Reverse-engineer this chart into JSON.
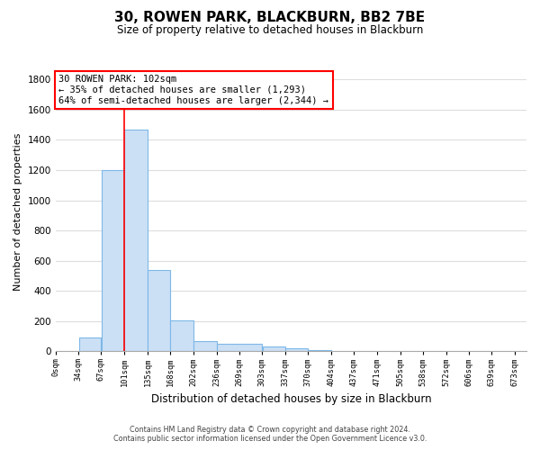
{
  "title": "30, ROWEN PARK, BLACKBURN, BB2 7BE",
  "subtitle": "Size of property relative to detached houses in Blackburn",
  "xlabel": "Distribution of detached houses by size in Blackburn",
  "ylabel": "Number of detached properties",
  "bar_values": [
    90,
    1200,
    1470,
    540,
    205,
    65,
    47,
    30,
    18,
    10
  ],
  "bar_left_edges": [
    34,
    67,
    101,
    135,
    168,
    202,
    236,
    303,
    337,
    370
  ],
  "bar_widths": [
    33,
    34,
    34,
    33,
    34,
    34,
    67,
    34,
    33,
    34
  ],
  "bar_color": "#cce0f5",
  "bar_edgecolor": "#7db8e8",
  "x_tick_positions": [
    0,
    34,
    67,
    101,
    135,
    168,
    202,
    236,
    269,
    303,
    337,
    370,
    404,
    437,
    471,
    505,
    538,
    572,
    606,
    639,
    673
  ],
  "x_tick_labels": [
    "0sqm",
    "34sqm",
    "67sqm",
    "101sqm",
    "135sqm",
    "168sqm",
    "202sqm",
    "236sqm",
    "269sqm",
    "303sqm",
    "337sqm",
    "370sqm",
    "404sqm",
    "437sqm",
    "471sqm",
    "505sqm",
    "538sqm",
    "572sqm",
    "606sqm",
    "639sqm",
    "673sqm"
  ],
  "y_tick_positions": [
    0,
    200,
    400,
    600,
    800,
    1000,
    1200,
    1400,
    1600,
    1800
  ],
  "ylim": [
    0,
    1850
  ],
  "xlim": [
    0,
    690
  ],
  "property_line_x": 101,
  "annotation_title": "30 ROWEN PARK: 102sqm",
  "annotation_line1": "← 35% of detached houses are smaller (1,293)",
  "annotation_line2": "64% of semi-detached houses are larger (2,344) →",
  "grid_color": "#dddddd",
  "footer1": "Contains HM Land Registry data © Crown copyright and database right 2024.",
  "footer2": "Contains public sector information licensed under the Open Government Licence v3.0.",
  "bg_color": "#ffffff"
}
